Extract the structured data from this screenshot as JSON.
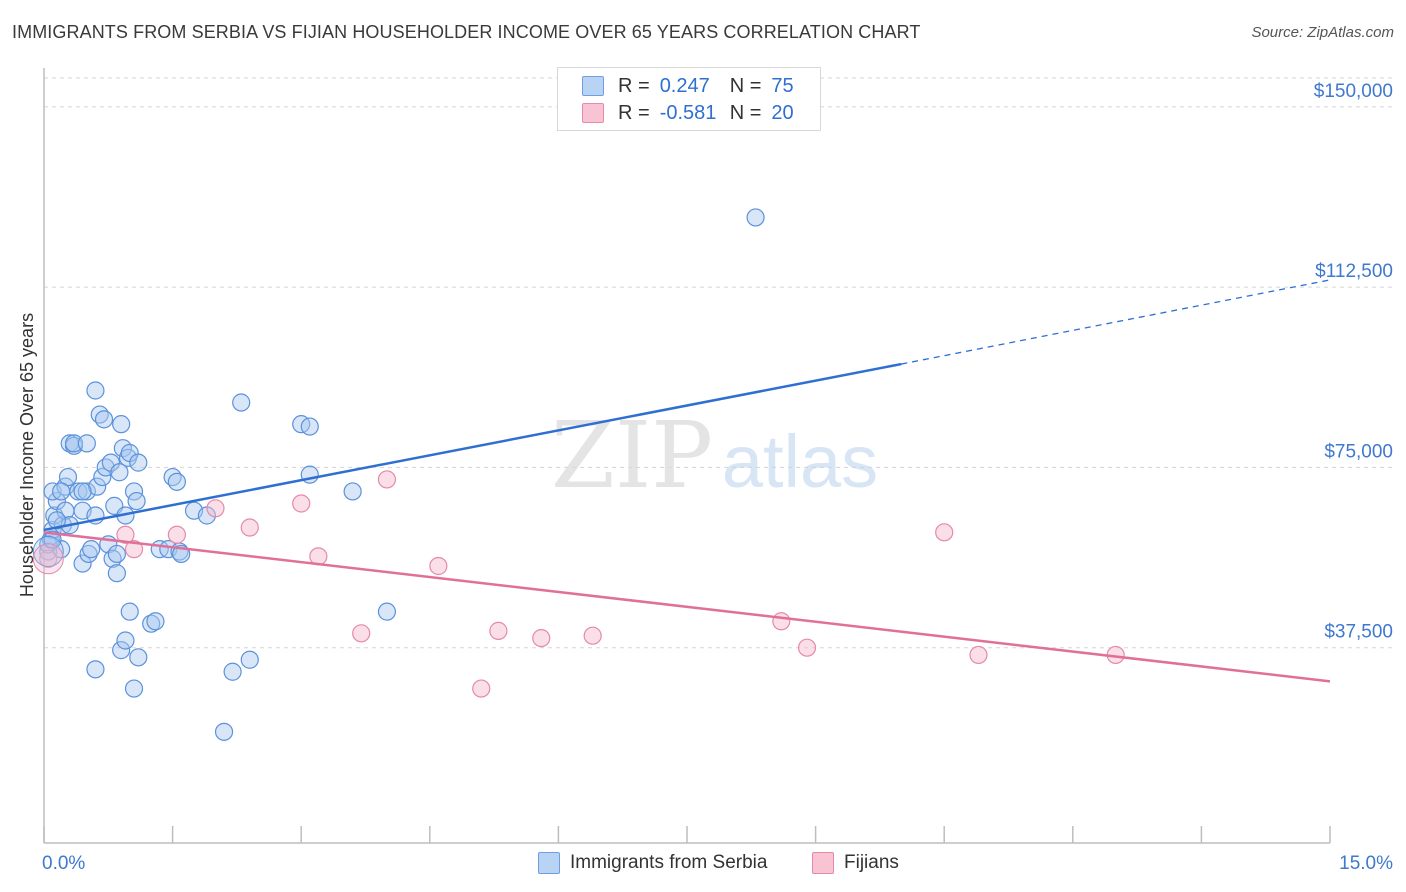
{
  "title": "IMMIGRANTS FROM SERBIA VS FIJIAN HOUSEHOLDER INCOME OVER 65 YEARS CORRELATION CHART",
  "source": "Source: ZipAtlas.com",
  "watermark": {
    "zip": "ZIP",
    "atlas": "atlas"
  },
  "legend": {
    "r_label": "R =",
    "n_label": "N =",
    "rows": [
      {
        "r": "0.247",
        "n": "75",
        "fill": "#b9d3f5",
        "stroke": "#6f9fe0"
      },
      {
        "r": "-0.581",
        "n": "20",
        "fill": "#f8c4d4",
        "stroke": "#e58aa8"
      }
    ]
  },
  "chart_data": {
    "type": "scatter",
    "title": "IMMIGRANTS FROM SERBIA VS FIJIAN HOUSEHOLDER INCOME OVER 65 YEARS CORRELATION CHART",
    "xlabel": "",
    "ylabel": "Householder Income Over 65 years",
    "xlim": [
      0,
      15
    ],
    "ylim": [
      0,
      156000
    ],
    "x_tick_labels": [
      "0.0%",
      "15.0%"
    ],
    "y_ticks": [
      37500,
      75000,
      112500,
      150000
    ],
    "y_tick_labels": [
      "$37,500",
      "$75,000",
      "$112,500",
      "$150,000"
    ],
    "grid": true,
    "series": [
      {
        "name": "Immigrants from Serbia",
        "color": "#4a86d8",
        "fill": "#a9c8f0",
        "points": [
          [
            0.05,
            57500
          ],
          [
            0.08,
            60000
          ],
          [
            0.1,
            62000
          ],
          [
            0.12,
            65000
          ],
          [
            0.15,
            68000
          ],
          [
            0.1,
            70000
          ],
          [
            0.05,
            59000
          ],
          [
            0.2,
            58000
          ],
          [
            0.22,
            63000
          ],
          [
            0.25,
            71000
          ],
          [
            0.28,
            73000
          ],
          [
            0.3,
            80000
          ],
          [
            0.35,
            79500
          ],
          [
            0.4,
            70000
          ],
          [
            0.45,
            55000
          ],
          [
            0.45,
            66000
          ],
          [
            0.5,
            70000
          ],
          [
            0.52,
            57000
          ],
          [
            0.55,
            58000
          ],
          [
            0.6,
            65000
          ],
          [
            0.62,
            71000
          ],
          [
            0.65,
            86000
          ],
          [
            0.7,
            85000
          ],
          [
            0.68,
            73000
          ],
          [
            0.72,
            75000
          ],
          [
            0.75,
            59000
          ],
          [
            0.78,
            76000
          ],
          [
            0.8,
            56000
          ],
          [
            0.82,
            67000
          ],
          [
            0.85,
            57000
          ],
          [
            0.88,
            74000
          ],
          [
            0.9,
            84000
          ],
          [
            0.92,
            79000
          ],
          [
            0.95,
            65000
          ],
          [
            0.98,
            77000
          ],
          [
            1.0,
            78000
          ],
          [
            1.05,
            70000
          ],
          [
            1.08,
            68000
          ],
          [
            1.1,
            76000
          ],
          [
            0.6,
            91000
          ],
          [
            0.35,
            80000
          ],
          [
            0.5,
            80000
          ],
          [
            0.45,
            70000
          ],
          [
            0.25,
            66000
          ],
          [
            0.3,
            63000
          ],
          [
            0.2,
            70000
          ],
          [
            0.15,
            64000
          ],
          [
            0.1,
            60000
          ],
          [
            0.85,
            53000
          ],
          [
            0.9,
            37000
          ],
          [
            0.6,
            33000
          ],
          [
            0.95,
            39000
          ],
          [
            1.0,
            45000
          ],
          [
            1.05,
            29000
          ],
          [
            1.1,
            35500
          ],
          [
            1.25,
            42500
          ],
          [
            1.3,
            43000
          ],
          [
            1.35,
            58000
          ],
          [
            1.45,
            58000
          ],
          [
            1.5,
            73000
          ],
          [
            1.55,
            72000
          ],
          [
            1.58,
            57500
          ],
          [
            1.6,
            57000
          ],
          [
            1.75,
            66000
          ],
          [
            1.9,
            65000
          ],
          [
            2.1,
            20000
          ],
          [
            2.2,
            32500
          ],
          [
            2.4,
            35000
          ],
          [
            2.3,
            88500
          ],
          [
            3.0,
            84000
          ],
          [
            3.1,
            83500
          ],
          [
            3.1,
            73500
          ],
          [
            3.6,
            70000
          ],
          [
            4.0,
            45000
          ],
          [
            8.3,
            127000
          ]
        ]
      },
      {
        "name": "Fijians",
        "color": "#e0709a",
        "fill": "#f5b8cc",
        "points": [
          [
            0.05,
            56000
          ],
          [
            1.05,
            58000
          ],
          [
            1.55,
            61000
          ],
          [
            2.0,
            66500
          ],
          [
            2.4,
            62500
          ],
          [
            3.0,
            67500
          ],
          [
            3.2,
            56500
          ],
          [
            3.7,
            40500
          ],
          [
            4.0,
            72500
          ],
          [
            4.6,
            54500
          ],
          [
            5.1,
            29000
          ],
          [
            5.3,
            41000
          ],
          [
            5.8,
            39500
          ],
          [
            6.4,
            40000
          ],
          [
            8.6,
            43000
          ],
          [
            8.9,
            37500
          ],
          [
            10.5,
            61500
          ],
          [
            10.9,
            36000
          ],
          [
            12.5,
            36000
          ],
          [
            0.95,
            61000
          ]
        ]
      }
    ],
    "trend_lines": [
      {
        "series": "Immigrants from Serbia",
        "x_start": 0.0,
        "y_start": 62000,
        "x_solid_end": 10.0,
        "y_solid_end": 96500,
        "x_dash_end": 15.0,
        "y_dash_end": 114000
      },
      {
        "series": "Fijians",
        "x_start": 0.0,
        "y_start": 61500,
        "x_end": 15.0,
        "y_end": 30500
      }
    ]
  }
}
